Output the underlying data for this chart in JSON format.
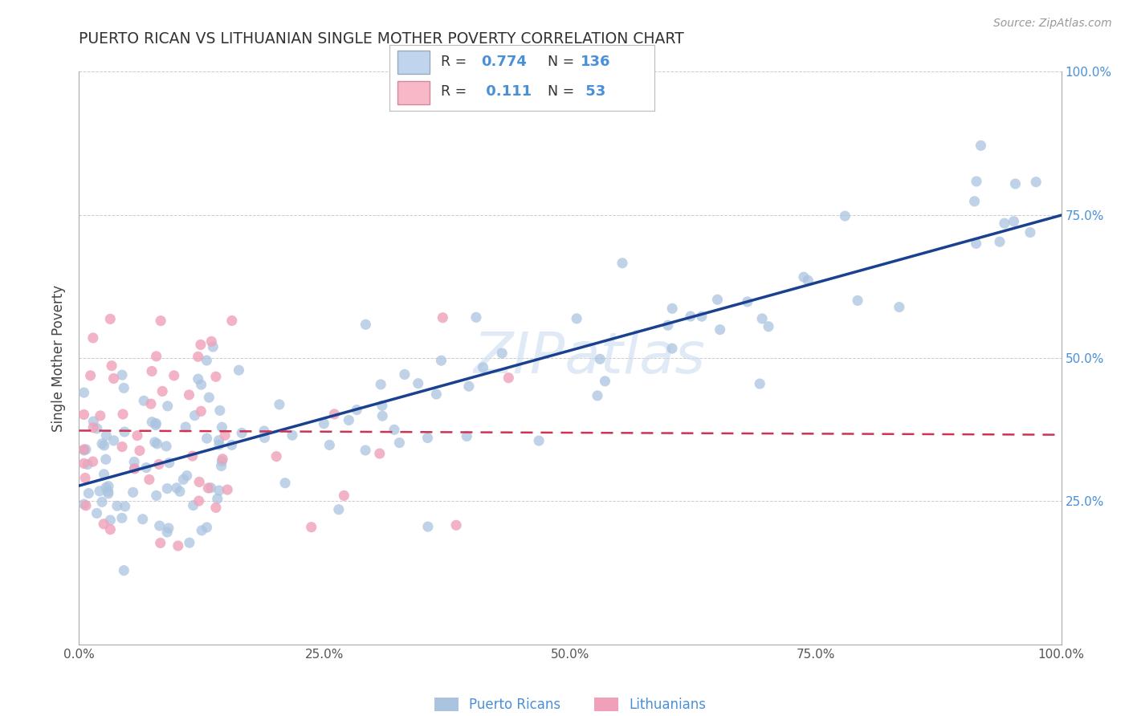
{
  "title": "PUERTO RICAN VS LITHUANIAN SINGLE MOTHER POVERTY CORRELATION CHART",
  "source": "Source: ZipAtlas.com",
  "ylabel": "Single Mother Poverty",
  "pr_color": "#aac4e0",
  "lith_color": "#f0a0b8",
  "pr_line_color": "#1a4090",
  "lith_line_color": "#cc3355",
  "legend_pr_r": "0.774",
  "legend_pr_n": "136",
  "legend_lith_r": "0.111",
  "legend_lith_n": "53",
  "background_color": "#ffffff",
  "grid_color": "#cccccc",
  "watermark_color": "#ccddf0",
  "right_tick_color": "#4a90d9",
  "title_color": "#333333",
  "source_color": "#999999"
}
